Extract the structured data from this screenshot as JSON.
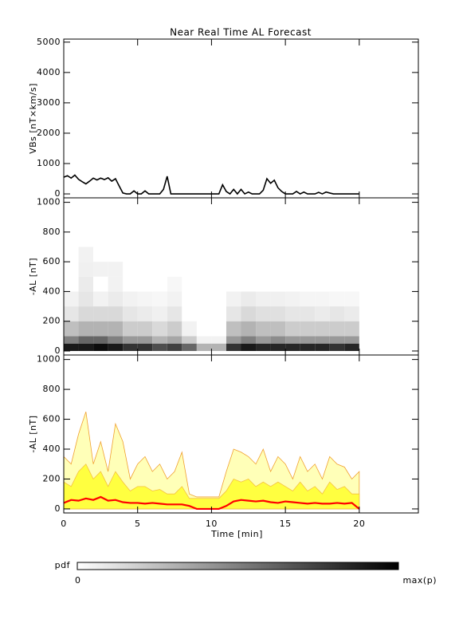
{
  "chart_data": [
    {
      "type": "line",
      "title": "Near Real Time AL Forecast",
      "ylabel": "VBs [nT×km/s]",
      "xlim": [
        0,
        24
      ],
      "xticks": [
        0,
        5,
        10,
        15,
        20
      ],
      "ylim": [
        -130,
        5100
      ],
      "yticks": [
        0,
        1000,
        2000,
        3000,
        4000,
        5000
      ],
      "color": "#000000",
      "x": [
        0,
        0.25,
        0.5,
        0.75,
        1,
        1.25,
        1.5,
        1.75,
        2,
        2.25,
        2.5,
        2.75,
        3,
        3.25,
        3.5,
        3.75,
        4,
        4.25,
        4.5,
        4.75,
        5,
        5.25,
        5.5,
        5.75,
        6,
        6.25,
        6.5,
        6.75,
        7,
        7.25,
        7.5,
        7.75,
        8,
        8.25,
        8.5,
        8.75,
        9,
        9.25,
        9.5,
        9.75,
        10,
        10.25,
        10.5,
        10.75,
        11,
        11.25,
        11.5,
        11.75,
        12,
        12.25,
        12.5,
        12.75,
        13,
        13.25,
        13.5,
        13.75,
        14,
        14.25,
        14.5,
        14.75,
        15,
        15.25,
        15.5,
        15.75,
        16,
        16.25,
        16.5,
        16.75,
        17,
        17.25,
        17.5,
        17.75,
        18,
        18.25,
        18.5,
        18.75,
        19,
        19.25,
        19.5,
        19.75,
        20
      ],
      "values": [
        550,
        600,
        520,
        620,
        480,
        400,
        330,
        420,
        520,
        460,
        520,
        470,
        530,
        420,
        500,
        260,
        30,
        0,
        0,
        100,
        0,
        0,
        100,
        0,
        0,
        0,
        0,
        150,
        580,
        0,
        0,
        0,
        0,
        0,
        0,
        0,
        0,
        0,
        0,
        0,
        0,
        0,
        0,
        300,
        80,
        0,
        150,
        0,
        150,
        0,
        60,
        0,
        0,
        0,
        120,
        500,
        350,
        450,
        200,
        80,
        0,
        0,
        0,
        80,
        0,
        60,
        0,
        0,
        0,
        50,
        0,
        60,
        30,
        0,
        0,
        0,
        0,
        0,
        0,
        0,
        0
      ]
    },
    {
      "type": "heatmap",
      "ylabel": "-AL [nT]",
      "colormap": "gray_r",
      "xlim": [
        0,
        24
      ],
      "xticks": [
        0,
        5,
        10,
        15,
        20
      ],
      "ylim": [
        -27,
        1030
      ],
      "yticks": [
        0,
        200,
        400,
        600,
        800,
        1000
      ],
      "x_edges": [
        0,
        1,
        2,
        3,
        4,
        5,
        6,
        7,
        8,
        9,
        10,
        11,
        12,
        13,
        14,
        15,
        16,
        17,
        18,
        19,
        20
      ],
      "y_edges": [
        0,
        50,
        100,
        200,
        300,
        400,
        500,
        600,
        700
      ],
      "values": [
        [
          0.9,
          0.5,
          0.25,
          0.1,
          0.05,
          0,
          0,
          0
        ],
        [
          0.9,
          0.6,
          0.3,
          0.15,
          0.1,
          0.08,
          0.06,
          0.05
        ],
        [
          0.95,
          0.6,
          0.3,
          0.15,
          0.05,
          0,
          0.05,
          0
        ],
        [
          0.9,
          0.5,
          0.3,
          0.15,
          0.08,
          0.05,
          0.05,
          0
        ],
        [
          0.8,
          0.4,
          0.2,
          0.1,
          0.05,
          0,
          0,
          0
        ],
        [
          0.8,
          0.4,
          0.2,
          0.08,
          0.04,
          0,
          0,
          0
        ],
        [
          0.7,
          0.3,
          0.15,
          0.06,
          0.03,
          0,
          0,
          0
        ],
        [
          0.75,
          0.35,
          0.2,
          0.1,
          0.05,
          0.03,
          0,
          0
        ],
        [
          0.6,
          0.2,
          0.05,
          0,
          0,
          0,
          0,
          0
        ],
        [
          0.3,
          0.05,
          0,
          0,
          0,
          0,
          0,
          0
        ],
        [
          0.3,
          0.05,
          0,
          0,
          0,
          0,
          0,
          0
        ],
        [
          0.8,
          0.4,
          0.25,
          0.1,
          0.05,
          0,
          0,
          0
        ],
        [
          0.9,
          0.5,
          0.3,
          0.15,
          0.08,
          0,
          0,
          0
        ],
        [
          0.85,
          0.4,
          0.25,
          0.12,
          0.06,
          0,
          0,
          0
        ],
        [
          0.85,
          0.45,
          0.25,
          0.12,
          0.06,
          0,
          0,
          0
        ],
        [
          0.85,
          0.4,
          0.2,
          0.1,
          0.05,
          0,
          0,
          0
        ],
        [
          0.85,
          0.4,
          0.2,
          0.1,
          0.04,
          0,
          0,
          0
        ],
        [
          0.85,
          0.4,
          0.2,
          0.08,
          0.04,
          0,
          0,
          0
        ],
        [
          0.8,
          0.4,
          0.2,
          0.1,
          0.03,
          0,
          0,
          0
        ],
        [
          0.85,
          0.4,
          0.2,
          0.08,
          0.03,
          0,
          0,
          0
        ]
      ],
      "colorbar": {
        "label": "pdf",
        "ticks": [
          "0",
          "max(p)"
        ]
      }
    },
    {
      "type": "area",
      "ylabel": "-AL [nT]",
      "xlabel": "Time [min]",
      "xlim": [
        0,
        24
      ],
      "xticks": [
        0,
        5,
        10,
        15,
        20
      ],
      "ylim": [
        -27,
        1030
      ],
      "yticks": [
        0,
        200,
        400,
        600,
        800,
        1000
      ],
      "x": [
        0,
        0.5,
        1,
        1.5,
        2,
        2.5,
        3,
        3.5,
        4,
        4.5,
        5,
        5.5,
        6,
        6.5,
        7,
        7.5,
        8,
        8.5,
        9,
        9.5,
        10,
        10.5,
        11,
        11.5,
        12,
        12.5,
        13,
        13.5,
        14,
        14.5,
        15,
        15.5,
        16,
        16.5,
        17,
        17.5,
        18,
        18.5,
        19,
        19.5,
        20
      ],
      "series": [
        {
          "style": "area",
          "color": "#ffffb8",
          "edge_color": "#f0a030",
          "values": [
            350,
            300,
            500,
            650,
            300,
            450,
            250,
            570,
            450,
            200,
            300,
            350,
            250,
            300,
            200,
            250,
            380,
            100,
            80,
            80,
            80,
            80,
            250,
            400,
            380,
            350,
            300,
            400,
            250,
            350,
            300,
            200,
            350,
            250,
            300,
            200,
            350,
            300,
            280,
            200,
            250
          ]
        },
        {
          "style": "area",
          "color": "#ffff40",
          "edge_color": "#f5c040",
          "values": [
            180,
            150,
            250,
            300,
            200,
            250,
            150,
            250,
            180,
            120,
            150,
            150,
            120,
            130,
            100,
            100,
            150,
            70,
            70,
            70,
            70,
            70,
            120,
            200,
            180,
            200,
            150,
            180,
            150,
            180,
            150,
            120,
            180,
            120,
            150,
            100,
            180,
            130,
            150,
            100,
            100
          ]
        },
        {
          "style": "line",
          "color": "#ff0000",
          "values": [
            40,
            60,
            55,
            70,
            60,
            80,
            55,
            60,
            45,
            40,
            40,
            35,
            40,
            35,
            30,
            30,
            30,
            20,
            0,
            0,
            0,
            0,
            20,
            50,
            60,
            55,
            50,
            55,
            45,
            40,
            50,
            45,
            40,
            35,
            40,
            35,
            35,
            40,
            35,
            40,
            0
          ]
        }
      ]
    }
  ]
}
